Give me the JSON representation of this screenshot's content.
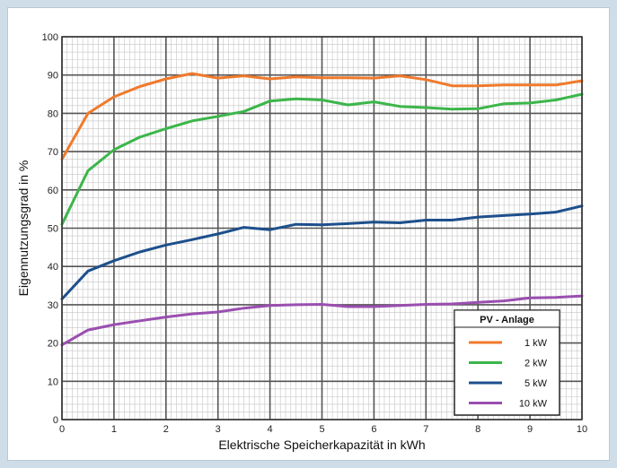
{
  "chart_data": {
    "type": "line",
    "title": "",
    "xlabel": "Elektrische Speicherkapazität in kWh",
    "ylabel": "Eigennutzungsgrad in %",
    "xlim": [
      0,
      10
    ],
    "ylim": [
      0,
      100
    ],
    "xticks": [
      0,
      1,
      2,
      3,
      4,
      5,
      6,
      7,
      8,
      9,
      10
    ],
    "yticks": [
      0,
      10,
      20,
      30,
      40,
      50,
      60,
      70,
      80,
      90,
      100
    ],
    "grid": true,
    "legend": {
      "title": "PV - Anlage",
      "position": "bottom-right"
    },
    "x": [
      0,
      0.5,
      1,
      1.5,
      2,
      2.5,
      3,
      3.5,
      4,
      4.5,
      5,
      5.5,
      6,
      6.5,
      7,
      7.5,
      8,
      8.5,
      9,
      9.5,
      10
    ],
    "series": [
      {
        "name": "1 kW",
        "color": "#f07a2c",
        "values": [
          68,
          80,
          84.3,
          87,
          89,
          90.4,
          89.2,
          89.8,
          89,
          89.5,
          89.3,
          89.3,
          89.2,
          89.8,
          88.8,
          87.2,
          87.2,
          87.4,
          87.4,
          87.4,
          88.5
        ]
      },
      {
        "name": "2 kW",
        "color": "#3cb64a",
        "values": [
          51,
          65,
          70.5,
          73.8,
          76,
          78,
          79.2,
          80.5,
          83.2,
          83.8,
          83.5,
          82.2,
          83,
          81.8,
          81.5,
          81.1,
          81.2,
          82.5,
          82.7,
          83.5,
          85
        ]
      },
      {
        "name": "5 kW",
        "color": "#1d4f8c",
        "values": [
          31.5,
          38.8,
          41.5,
          43.8,
          45.6,
          47,
          48.5,
          50.2,
          49.6,
          51,
          50.9,
          51.2,
          51.6,
          51.4,
          52.1,
          52.1,
          52.9,
          53.3,
          53.7,
          54.2,
          55.8
        ]
      },
      {
        "name": "10 kW",
        "color": "#9a4fb0",
        "values": [
          19.5,
          23.4,
          24.8,
          25.8,
          26.8,
          27.6,
          28.1,
          29.1,
          29.8,
          30,
          30.1,
          29.5,
          29.5,
          29.8,
          30.1,
          30.2,
          30.6,
          31,
          31.8,
          31.9,
          32.3
        ]
      }
    ]
  }
}
